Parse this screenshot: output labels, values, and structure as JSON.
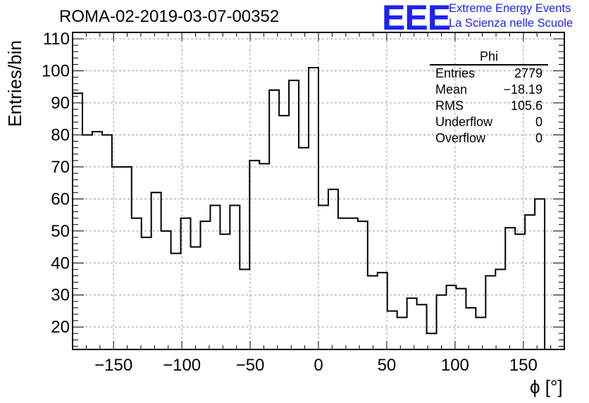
{
  "chart_data": {
    "type": "histogram",
    "title": "ROMA-02-2019-03-07-00352",
    "xlabel": "ϕ [°]",
    "ylabel": "Entries/bin",
    "xlim": [
      -180,
      180
    ],
    "ylim": [
      13,
      112
    ],
    "grid": true,
    "xticks": [
      -150,
      -100,
      -50,
      0,
      50,
      100,
      150
    ],
    "xtick_labels": [
      "−150",
      "−100",
      "−50",
      "0",
      "50",
      "100",
      "150"
    ],
    "yticks": [
      20,
      30,
      40,
      50,
      60,
      70,
      80,
      90,
      100,
      110
    ],
    "bin_width": 7.2,
    "counts": [
      93,
      80,
      81,
      80,
      70,
      70,
      54,
      48,
      62,
      50,
      43,
      54,
      45,
      53,
      58,
      49,
      58,
      38,
      72,
      71,
      94,
      86,
      97,
      76,
      101,
      58,
      63,
      54,
      54,
      53,
      36,
      37,
      25,
      23,
      29,
      27,
      18,
      30,
      33,
      32,
      26,
      23,
      36,
      38,
      51,
      49,
      55,
      60
    ],
    "stats": {
      "title": "Phi",
      "rows": [
        {
          "label": "Entries",
          "value": "2779"
        },
        {
          "label": "Mean",
          "value": "−18.19"
        },
        {
          "label": "RMS",
          "value": "105.6"
        },
        {
          "label": "Underflow",
          "value": "0"
        },
        {
          "label": "Overflow",
          "value": "0"
        }
      ]
    }
  },
  "logo": {
    "text": "EEE",
    "line1": "Extreme Energy Events",
    "line2": "La Scienza nelle Scuole",
    "color": "#1e22ee"
  }
}
